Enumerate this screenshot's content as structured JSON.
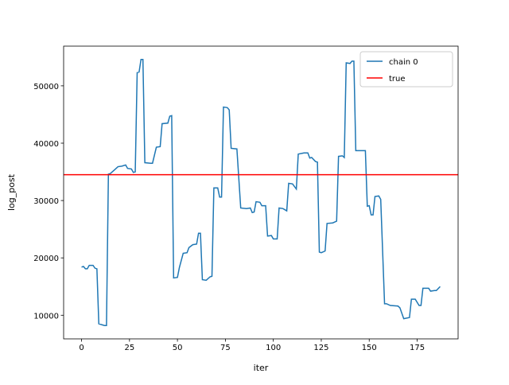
{
  "chart_data": {
    "type": "line",
    "x_label": "iter",
    "y_label": "log_post",
    "x": [
      0,
      1,
      2,
      3,
      4,
      6,
      7,
      8,
      9,
      10,
      12,
      13,
      14,
      15,
      17,
      19,
      21,
      23,
      24,
      26,
      27,
      28,
      29,
      30,
      31,
      32,
      33,
      36,
      37,
      39,
      41,
      42,
      45,
      46,
      47,
      48,
      50,
      51,
      53,
      55,
      56,
      58,
      60,
      61,
      62,
      63,
      65,
      67,
      68,
      69,
      71,
      72,
      73,
      74,
      76,
      77,
      78,
      81,
      83,
      86,
      88,
      89,
      90,
      91,
      93,
      94,
      96,
      97,
      99,
      100,
      102,
      103,
      105,
      107,
      108,
      110,
      112,
      113,
      116,
      118,
      119,
      120,
      122,
      123,
      124,
      125,
      127,
      128,
      131,
      133,
      134,
      136,
      137,
      138,
      140,
      141,
      142,
      143,
      146,
      148,
      149,
      150,
      151,
      152,
      153,
      155,
      156,
      158,
      159,
      161,
      165,
      166,
      168,
      171,
      172,
      174,
      176,
      177,
      178,
      181,
      182,
      184,
      185,
      187
    ],
    "series": [
      {
        "name": "chain 0",
        "color": "#1f77b4",
        "values": [
          18400,
          18500,
          18100,
          18100,
          18700,
          18700,
          18200,
          18100,
          8500,
          8400,
          8200,
          8200,
          34600,
          34700,
          35300,
          35900,
          36000,
          36200,
          35600,
          35500,
          34900,
          35000,
          52300,
          52400,
          54600,
          54600,
          36600,
          36500,
          36500,
          39300,
          39400,
          43400,
          43500,
          44700,
          44800,
          16500,
          16600,
          18300,
          20800,
          20900,
          21800,
          22300,
          22400,
          24300,
          24300,
          16200,
          16100,
          16700,
          16800,
          32200,
          32200,
          30600,
          30600,
          46300,
          46200,
          45800,
          39100,
          39000,
          28700,
          28600,
          28700,
          27900,
          28000,
          29800,
          29700,
          29100,
          29100,
          23800,
          23900,
          23300,
          23300,
          28700,
          28600,
          28200,
          33000,
          32900,
          32000,
          38100,
          38300,
          38300,
          37400,
          37500,
          36800,
          36700,
          21000,
          20900,
          21200,
          26000,
          26100,
          26400,
          37700,
          37800,
          37500,
          54000,
          53900,
          54300,
          54300,
          38700,
          38700,
          38700,
          29000,
          29100,
          27500,
          27500,
          30700,
          30800,
          30200,
          12000,
          12000,
          11700,
          11600,
          11300,
          9400,
          9600,
          12800,
          12800,
          11700,
          11700,
          14700,
          14700,
          14200,
          14300,
          14300,
          15000
        ]
      },
      {
        "name": "true",
        "color": "#ff0000",
        "hline": 34500
      }
    ],
    "xlim": [
      -9.35,
      196.35
    ],
    "ylim": [
      5880,
      56920
    ],
    "xticks": [
      0,
      25,
      50,
      75,
      100,
      125,
      150,
      175
    ],
    "yticks": [
      10000,
      20000,
      30000,
      40000,
      50000
    ],
    "legend": "upper right"
  }
}
